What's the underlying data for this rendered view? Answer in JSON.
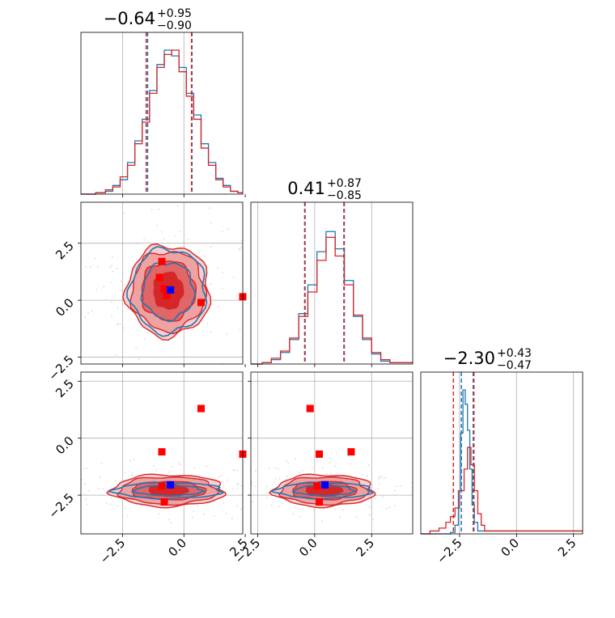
{
  "chart_data": {
    "type": "corner",
    "colors": {
      "series_a": "#d62728",
      "series_b": "#1f77b4",
      "marker_a": "#ff0000",
      "marker_b": "#0000ff",
      "grid": "#b0b0b0"
    },
    "series": [
      {
        "color": "#d62728",
        "style": "filled contours + step histogram"
      },
      {
        "color": "#1f77b4",
        "style": "contour lines + step histogram"
      }
    ],
    "titles": [
      {
        "main": "−0.64",
        "sup": "+0.95",
        "sub": "−0.90"
      },
      {
        "main": "0.41",
        "sup": "+0.87",
        "sub": "−0.85"
      },
      {
        "main": "−2.30",
        "sup": "+0.43",
        "sub": "−0.47"
      }
    ],
    "axes": {
      "p0": {
        "range": [
          -4.2,
          2.4
        ],
        "ticks": [
          "−2.5",
          "0.0",
          "2.5"
        ],
        "tick_values": [
          -2.5,
          0.0,
          2.5
        ]
      },
      "p1": {
        "range": [
          -2.8,
          4.3
        ],
        "ticks": [
          "−2.5",
          "0.0",
          "2.5"
        ],
        "tick_values": [
          -2.5,
          0.0,
          2.5
        ]
      },
      "p2": {
        "range": [
          -4.2,
          2.9
        ],
        "ticks": [
          "−2.5",
          "0.0",
          "2.5"
        ],
        "tick_values": [
          -2.5,
          0.0,
          2.5
        ]
      }
    },
    "grid": true,
    "hist_quantiles": [
      {
        "a": [
          -1.54,
          -0.64,
          0.31
        ],
        "b": [
          -1.48,
          -0.64,
          0.33
        ]
      },
      {
        "a": [
          -0.44,
          0.41,
          1.28
        ],
        "b": [
          -0.42,
          0.41,
          1.3
        ]
      },
      {
        "a": [
          -2.77,
          -2.3,
          -1.87
        ],
        "b": [
          -2.42,
          -2.3,
          -1.9
        ]
      }
    ],
    "histograms": {
      "p0": {
        "a": [
          [
            -4.2,
            0
          ],
          [
            -3.6,
            0.01
          ],
          [
            -3.2,
            0.03
          ],
          [
            -2.9,
            0.05
          ],
          [
            -2.6,
            0.12
          ],
          [
            -2.3,
            0.2
          ],
          [
            -2.0,
            0.35
          ],
          [
            -1.7,
            0.5
          ],
          [
            -1.4,
            0.7
          ],
          [
            -1.1,
            0.88
          ],
          [
            -0.8,
            0.97
          ],
          [
            -0.5,
            1.0
          ],
          [
            -0.2,
            0.85
          ],
          [
            0.1,
            0.68
          ],
          [
            0.4,
            0.52
          ],
          [
            0.7,
            0.32
          ],
          [
            1.0,
            0.2
          ],
          [
            1.3,
            0.1
          ],
          [
            1.6,
            0.05
          ],
          [
            1.9,
            0.02
          ],
          [
            2.2,
            0.01
          ]
        ],
        "b": [
          [
            -4.2,
            0
          ],
          [
            -3.6,
            0.01
          ],
          [
            -3.2,
            0.02
          ],
          [
            -2.9,
            0.06
          ],
          [
            -2.6,
            0.1
          ],
          [
            -2.3,
            0.22
          ],
          [
            -2.0,
            0.37
          ],
          [
            -1.7,
            0.52
          ],
          [
            -1.4,
            0.72
          ],
          [
            -1.1,
            0.9
          ],
          [
            -0.8,
            1.0
          ],
          [
            -0.5,
            0.96
          ],
          [
            -0.2,
            0.88
          ],
          [
            0.1,
            0.7
          ],
          [
            0.4,
            0.55
          ],
          [
            0.7,
            0.35
          ],
          [
            1.0,
            0.22
          ],
          [
            1.3,
            0.11
          ],
          [
            1.6,
            0.06
          ],
          [
            1.9,
            0.02
          ],
          [
            2.2,
            0.01
          ]
        ]
      },
      "p1": {
        "a": [
          [
            -2.8,
            0
          ],
          [
            -2.3,
            0.01
          ],
          [
            -1.9,
            0.04
          ],
          [
            -1.5,
            0.09
          ],
          [
            -1.1,
            0.18
          ],
          [
            -0.7,
            0.33
          ],
          [
            -0.3,
            0.5
          ],
          [
            0.1,
            0.72
          ],
          [
            0.5,
            0.88
          ],
          [
            0.9,
            0.75
          ],
          [
            1.3,
            0.55
          ],
          [
            1.7,
            0.34
          ],
          [
            2.1,
            0.18
          ],
          [
            2.5,
            0.08
          ],
          [
            2.9,
            0.03
          ],
          [
            3.3,
            0.01
          ]
        ],
        "b": [
          [
            -2.8,
            0
          ],
          [
            -2.3,
            0.01
          ],
          [
            -1.9,
            0.03
          ],
          [
            -1.5,
            0.08
          ],
          [
            -1.1,
            0.17
          ],
          [
            -0.7,
            0.35
          ],
          [
            -0.3,
            0.55
          ],
          [
            0.1,
            0.78
          ],
          [
            0.5,
            0.92
          ],
          [
            0.9,
            0.8
          ],
          [
            1.3,
            0.58
          ],
          [
            1.7,
            0.33
          ],
          [
            2.1,
            0.17
          ],
          [
            2.5,
            0.07
          ],
          [
            2.9,
            0.02
          ],
          [
            3.3,
            0.01
          ]
        ]
      },
      "p2": {
        "a": [
          [
            -4.2,
            0
          ],
          [
            -3.8,
            0.02
          ],
          [
            -3.4,
            0.04
          ],
          [
            -3.1,
            0.08
          ],
          [
            -2.9,
            0.12
          ],
          [
            -2.7,
            0.18
          ],
          [
            -2.5,
            0.3
          ],
          [
            -2.3,
            0.45
          ],
          [
            -2.15,
            0.6
          ],
          [
            -2.0,
            0.48
          ],
          [
            -1.85,
            0.3
          ],
          [
            -1.7,
            0.14
          ],
          [
            -1.55,
            0.06
          ],
          [
            -1.4,
            0.02
          ]
        ],
        "b": [
          [
            -4.2,
            0
          ],
          [
            -2.9,
            0.01
          ],
          [
            -2.7,
            0.06
          ],
          [
            -2.55,
            0.3
          ],
          [
            -2.45,
            0.7
          ],
          [
            -2.35,
            1.0
          ],
          [
            -2.25,
            0.9
          ],
          [
            -2.15,
            0.72
          ],
          [
            -2.05,
            0.45
          ],
          [
            -1.95,
            0.2
          ],
          [
            -1.85,
            0.08
          ],
          [
            -1.7,
            0.02
          ]
        ]
      }
    },
    "contours": {
      "p1_vs_p0": {
        "center": [
          -0.64,
          0.41
        ],
        "a_radii": [
          [
            0.6,
            0.8
          ],
          [
            1.1,
            1.3
          ],
          [
            1.5,
            1.75
          ],
          [
            1.7,
            2.0
          ]
        ],
        "b_radii": [
          [
            1.05,
            1.25
          ],
          [
            1.55,
            1.85
          ]
        ]
      },
      "p2_vs_p0": {
        "center": [
          -0.64,
          -2.3
        ],
        "a_radii": [
          [
            0.8,
            0.25
          ],
          [
            1.5,
            0.4
          ],
          [
            2.0,
            0.6
          ],
          [
            2.3,
            0.7
          ]
        ],
        "b_radii": [
          [
            1.4,
            0.22
          ],
          [
            2.2,
            0.35
          ]
        ]
      },
      "p2_vs_p1": {
        "center": [
          0.41,
          -2.3
        ],
        "a_radii": [
          [
            0.8,
            0.25
          ],
          [
            1.4,
            0.4
          ],
          [
            1.9,
            0.6
          ],
          [
            2.2,
            0.7
          ]
        ],
        "b_radii": [
          [
            1.3,
            0.22
          ],
          [
            2.1,
            0.35
          ]
        ]
      }
    },
    "markers": {
      "p1_vs_p0": {
        "red": [
          [
            -0.9,
            1.7
          ],
          [
            -1.0,
            1.0
          ],
          [
            -0.8,
            0.5
          ],
          [
            -0.7,
            0.2
          ],
          [
            0.7,
            -0.1
          ],
          [
            2.4,
            0.15
          ]
        ],
        "blue": [
          [
            -0.55,
            0.45
          ]
        ]
      },
      "p2_vs_p0": {
        "red": [
          [
            0.7,
            1.3
          ],
          [
            -0.9,
            -0.6
          ],
          [
            2.4,
            -0.7
          ],
          [
            -0.9,
            -2.1
          ],
          [
            -0.8,
            -2.8
          ]
        ],
        "blue": [
          [
            -0.55,
            -2.05
          ]
        ]
      },
      "p2_vs_p1": {
        "red": [
          [
            -0.2,
            1.3
          ],
          [
            0.2,
            -0.7
          ],
          [
            1.6,
            -0.6
          ],
          [
            0.1,
            -2.1
          ],
          [
            0.2,
            -2.8
          ]
        ],
        "blue": [
          [
            0.45,
            -2.05
          ]
        ]
      }
    }
  }
}
